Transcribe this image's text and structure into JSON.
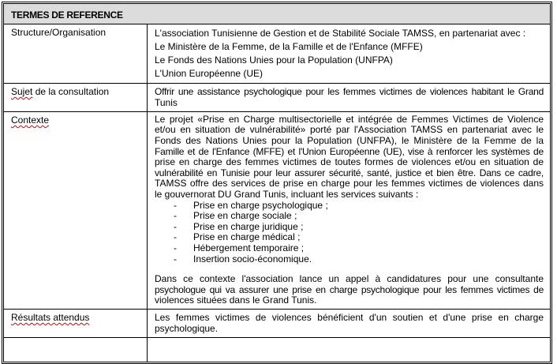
{
  "title": "TERMES DE REFERENCE",
  "rows": {
    "structure": {
      "label": "Structure/Organisation",
      "lines": [
        "L'association Tunisienne de Gestion et de Stabilité Sociale TAMSS, en partenariat avec :",
        "Le Ministère de la Femme, de la Famille et de l'Enfance (MFFE)",
        "Le Fonds des Nations Unies pour la Population (UNFPA)",
        "L'Union Européenne (UE)"
      ]
    },
    "sujet": {
      "label_word": "Sujet",
      "label_rest": " de la consultation",
      "lines": [
        "Offrir une assistance psychologique pour les femmes victimes de violences habitant le Grand",
        "Tunis"
      ]
    },
    "contexte": {
      "label": "Contexte",
      "para1": [
        "Le projet «Prise en Charge multisectorielle et intégrée de Femmes Victimes de Violence",
        "et/ou en situation de vulnérabilité» porté par l'Association TAMSS en partenariat avec le",
        "Fonds des Nations Unies pour la Population (UNFPA), le Ministère de la Femme de la",
        "Famille et de l'Enfance (MFFE) et l'Union Européenne (UE), vise à renforcer les systèmes de",
        "prise en charge des femmes victimes de toutes formes de violences et/ou en situation de",
        "vulnérabilité en Tunisie pour leur assurer sécurité, santé, justice et bien être. Dans ce cadre,",
        "TAMSS  offre des services de prise en charge pour les femmes victimes de violences dans",
        "le gouvernorat DU Grand Tunis, incluant les services suivants :"
      ],
      "bullets": [
        "Prise en charge psychologique ;",
        "Prise en charge sociale ;",
        "Prise en charge juridique ;",
        "Prise en charge médical ;",
        "Hébergement temporaire ;",
        "Insertion socio-économique."
      ],
      "bullet_mark": "-",
      "para2": [
        "Dans ce contexte l'association lance un appel à candidatures pour une consultante",
        "psychologue qui va assurer une prise en charge psychologique pour les femmes victimes de",
        "violences situées dans le Grand Tunis."
      ]
    },
    "resultats": {
      "label": "Résultats attendus",
      "lines": [
        "Les femmes victimes de violences bénéficient d'un soutien et d'une prise en charge",
        "psychologique."
      ]
    }
  }
}
